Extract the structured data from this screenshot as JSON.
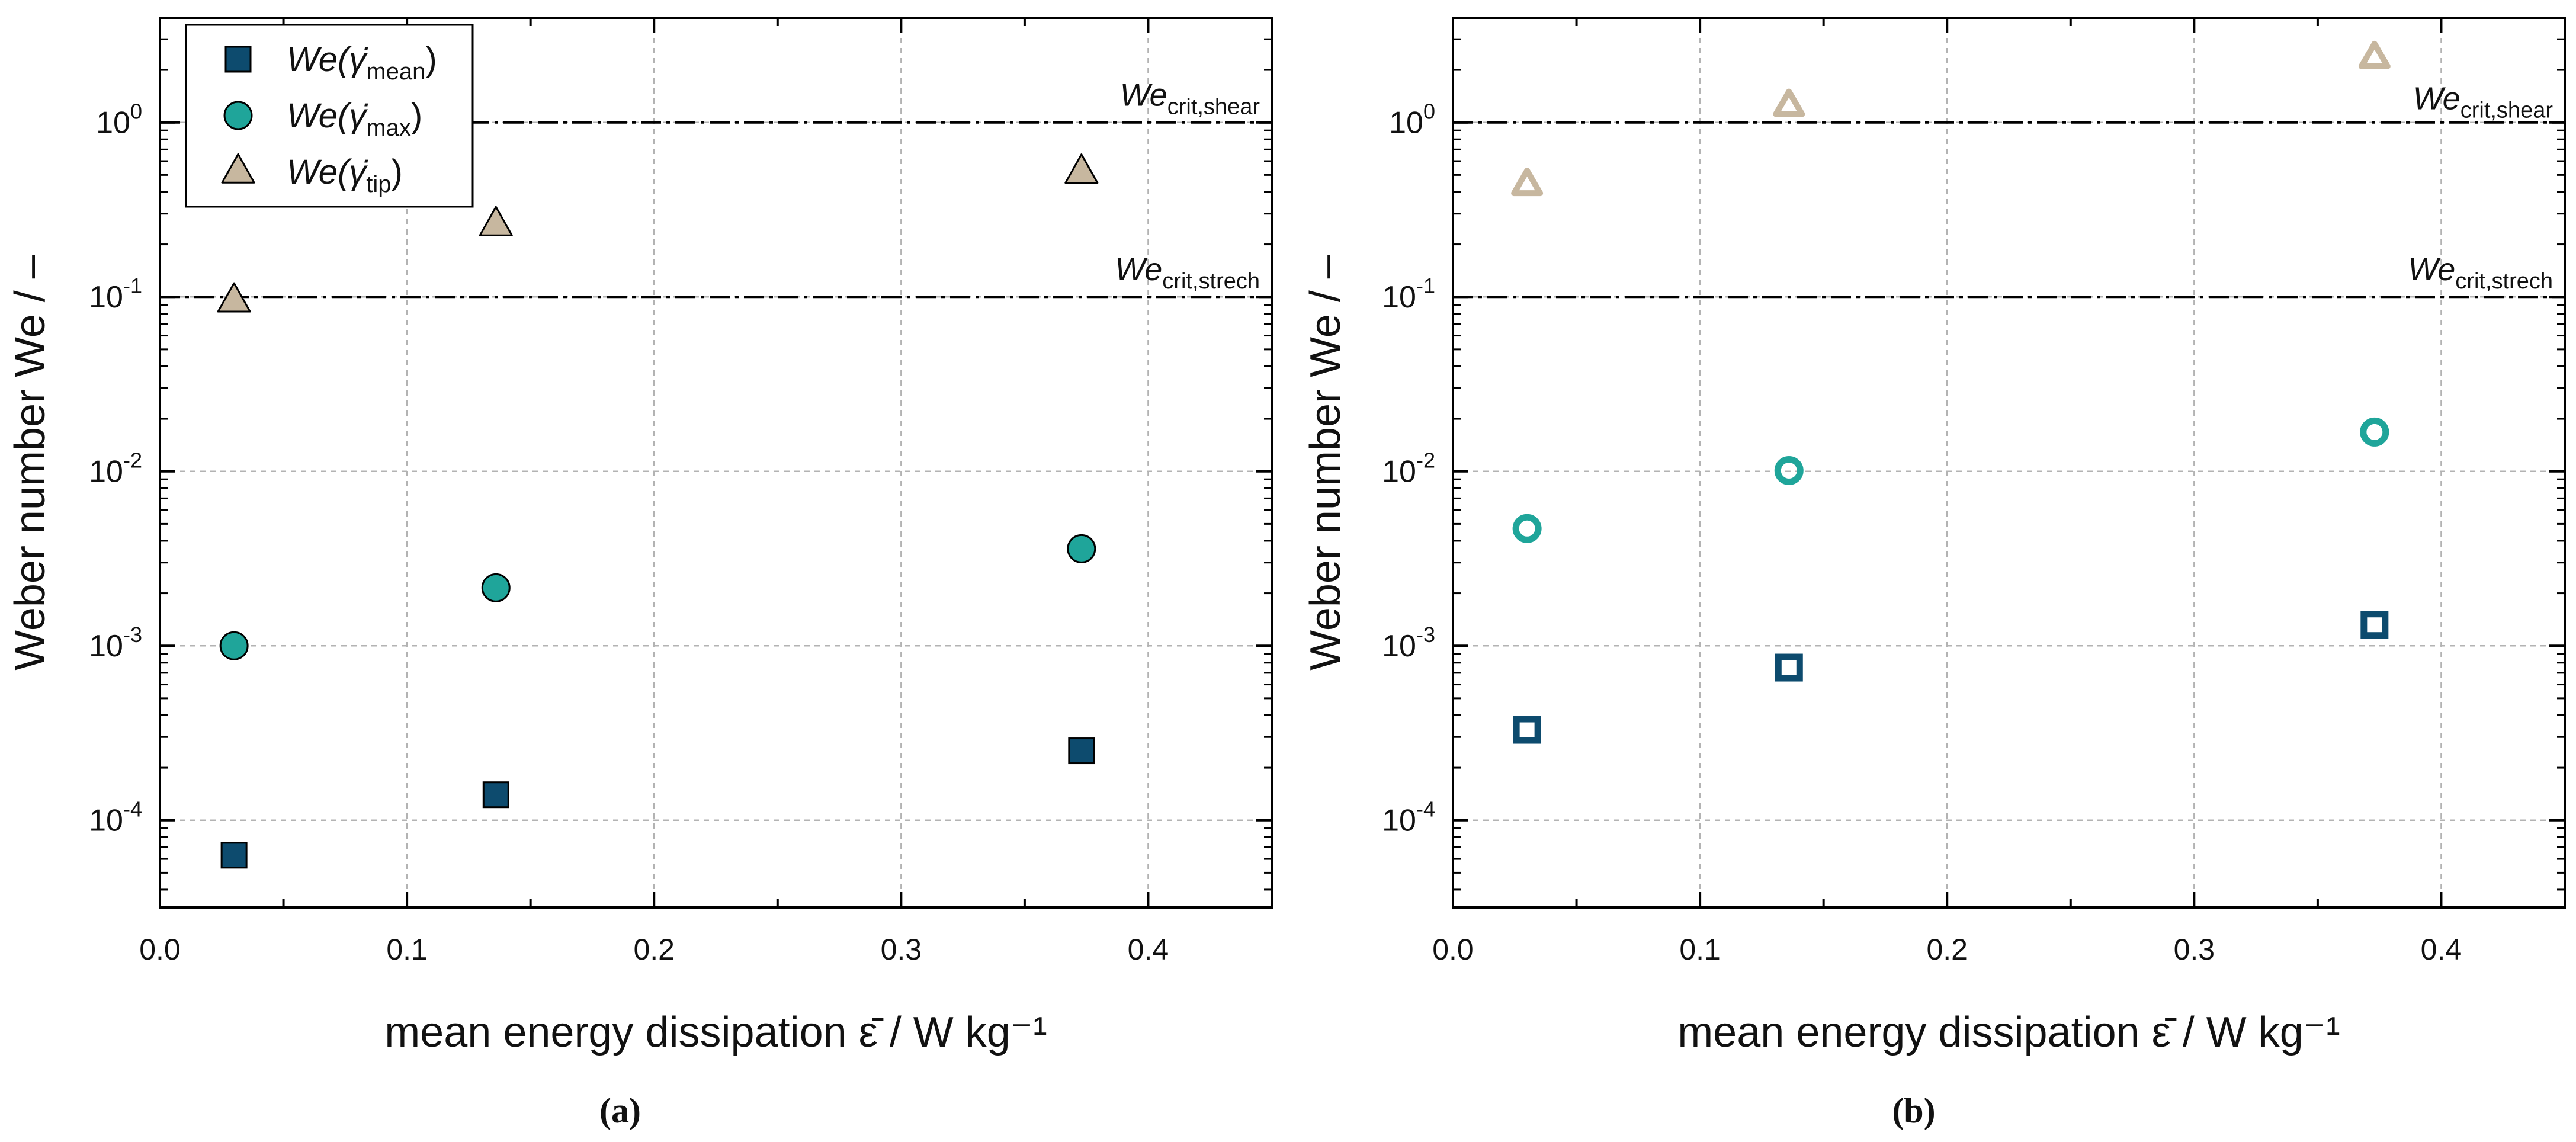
{
  "colors": {
    "mean": "#0d4b6e",
    "max": "#1fa59a",
    "tip": "#c7b79f",
    "axis": "#000000",
    "grid": "#b3b3b3"
  },
  "chart_data": [
    {
      "type": "scatter",
      "panel_caption": "(a)",
      "marker_style": "filled",
      "xlabel": "mean energy dissipation ε̄ / W kg⁻¹",
      "ylabel": "Weber number We / –",
      "xlim": [
        0.0,
        0.45
      ],
      "ylim_log10": [
        -4.5,
        0.6
      ],
      "x_ticks": [
        "0.0",
        "0.1",
        "0.2",
        "0.3",
        "0.4"
      ],
      "y_ticks": [
        {
          "base": "10",
          "exp": "-4"
        },
        {
          "base": "10",
          "exp": "-3"
        },
        {
          "base": "10",
          "exp": "-2"
        },
        {
          "base": "10",
          "exp": "-1"
        },
        {
          "base": "10",
          "exp": "0"
        }
      ],
      "grid": true,
      "legend": {
        "placement": "top-left",
        "entries": [
          {
            "series": "mean",
            "text": "We(γ̇",
            "sub": "mean",
            "close": ")"
          },
          {
            "series": "max",
            "text": "We(γ̇",
            "sub": "max",
            "close": ")"
          },
          {
            "series": "tip",
            "text": "We(γ̇",
            "sub": "tip",
            "close": ")"
          }
        ]
      },
      "series": [
        {
          "name": "We(γ̇mean)",
          "key": "mean",
          "marker": "square",
          "x": [
            0.03,
            0.136,
            0.373
          ],
          "y": [
            6.3e-05,
            0.00014,
            0.00025
          ]
        },
        {
          "name": "We(γ̇max)",
          "key": "max",
          "marker": "circle",
          "x": [
            0.03,
            0.136,
            0.373
          ],
          "y": [
            0.001,
            0.00215,
            0.0036
          ]
        },
        {
          "name": "We(γ̇tip)",
          "key": "tip",
          "marker": "triangle",
          "x": [
            0.03,
            0.136,
            0.373
          ],
          "y": [
            0.095,
            0.26,
            0.52
          ]
        }
      ],
      "reference_lines": [
        {
          "y": 1.0,
          "label": "We",
          "sub": "crit,shear"
        },
        {
          "y": 0.1,
          "label": "We",
          "sub": "crit,strech"
        }
      ]
    },
    {
      "type": "scatter",
      "panel_caption": "(b)",
      "marker_style": "hollow",
      "xlabel": "mean energy dissipation ε̄ / W kg⁻¹",
      "ylabel": "Weber number We / –",
      "xlim": [
        0.0,
        0.45
      ],
      "ylim_log10": [
        -4.5,
        0.6
      ],
      "x_ticks": [
        "0.0",
        "0.1",
        "0.2",
        "0.3",
        "0.4"
      ],
      "y_ticks": [
        {
          "base": "10",
          "exp": "-4"
        },
        {
          "base": "10",
          "exp": "-3"
        },
        {
          "base": "10",
          "exp": "-2"
        },
        {
          "base": "10",
          "exp": "-1"
        },
        {
          "base": "10",
          "exp": "0"
        }
      ],
      "grid": true,
      "series": [
        {
          "name": "We(γ̇mean)",
          "key": "mean",
          "marker": "square",
          "x": [
            0.03,
            0.136,
            0.373
          ],
          "y": [
            0.00033,
            0.00075,
            0.00132
          ]
        },
        {
          "name": "We(γ̇max)",
          "key": "max",
          "marker": "circle",
          "x": [
            0.03,
            0.136,
            0.373
          ],
          "y": [
            0.0047,
            0.0101,
            0.0168
          ]
        },
        {
          "name": "We(γ̇tip)",
          "key": "tip",
          "marker": "triangle",
          "x": [
            0.03,
            0.136,
            0.373
          ],
          "y": [
            0.44,
            1.25,
            2.35
          ]
        }
      ],
      "reference_lines": [
        {
          "y": 1.0,
          "label": "We",
          "sub": "crit,shear"
        },
        {
          "y": 0.1,
          "label": "We",
          "sub": "crit,strech"
        }
      ]
    }
  ]
}
